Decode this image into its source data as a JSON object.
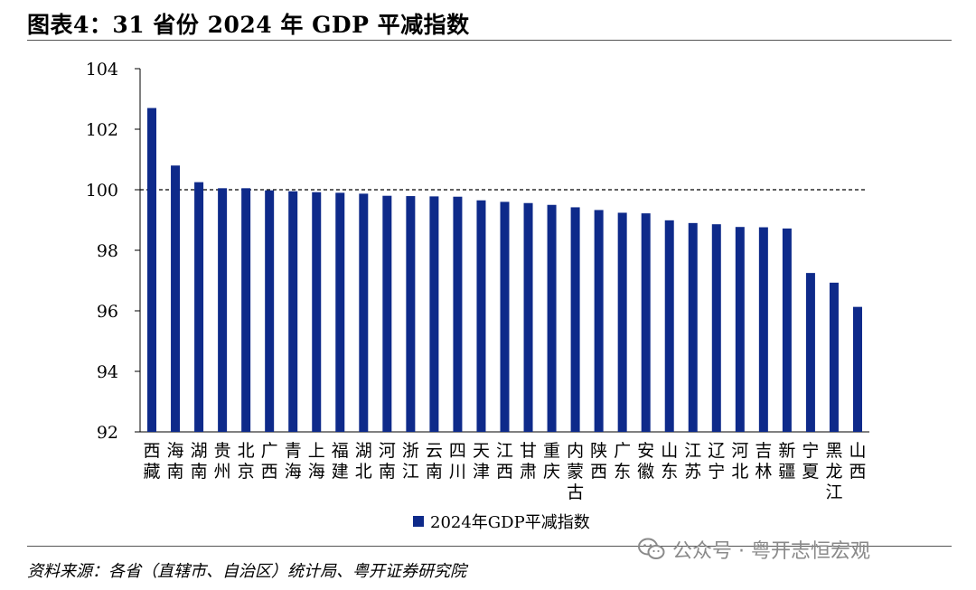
{
  "header": {
    "title": "图表4：31 省份 2024 年 GDP 平减指数"
  },
  "chart_data": {
    "type": "bar",
    "title": "图表4：31 省份 2024 年 GDP 平减指数",
    "xlabel": "",
    "ylabel": "",
    "ylim": [
      92,
      104
    ],
    "yticks": [
      "92",
      "94",
      "96",
      "98",
      "100",
      "102",
      "104"
    ],
    "reference_line": 100,
    "categories": [
      "西藏",
      "海南",
      "湖南",
      "贵州",
      "北京",
      "广西",
      "青海",
      "上海",
      "福建",
      "湖北",
      "河南",
      "浙江",
      "云南",
      "四川",
      "天津",
      "江西",
      "甘肃",
      "重庆",
      "内蒙古",
      "陕西",
      "广东",
      "安徽",
      "山东",
      "江苏",
      "辽宁",
      "河北",
      "吉林",
      "新疆",
      "宁夏",
      "黑龙江",
      "山西"
    ],
    "series": [
      {
        "name": "2024年GDP平减指数",
        "color": "#0e2a8a",
        "values": [
          102.7,
          100.8,
          100.25,
          100.05,
          100.05,
          99.98,
          99.95,
          99.92,
          99.9,
          99.87,
          99.8,
          99.79,
          99.78,
          99.77,
          99.65,
          99.6,
          99.56,
          99.5,
          99.42,
          99.33,
          99.24,
          99.22,
          98.99,
          98.9,
          98.86,
          98.77,
          98.76,
          98.72,
          97.25,
          96.93,
          96.13
        ]
      }
    ],
    "legend": "bottom-center"
  },
  "legend": {
    "label": "2024年GDP平减指数"
  },
  "footer": {
    "source": "资料来源：各省（直辖市、自治区）统计局、粤开证券研究院",
    "watermark": "公众号 · 粤开志恒宏观"
  }
}
